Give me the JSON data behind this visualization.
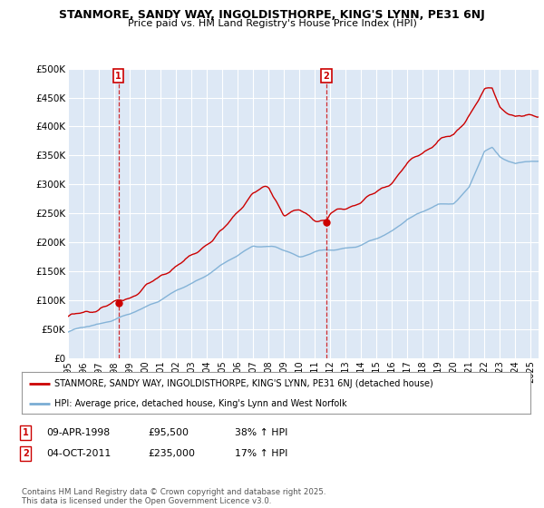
{
  "title": "STANMORE, SANDY WAY, INGOLDISTHORPE, KING'S LYNN, PE31 6NJ",
  "subtitle": "Price paid vs. HM Land Registry's House Price Index (HPI)",
  "background_color": "#ffffff",
  "plot_bg_color": "#dde8f5",
  "grid_color": "#ffffff",
  "y_min": 0,
  "y_max": 500000,
  "y_ticks": [
    0,
    50000,
    100000,
    150000,
    200000,
    250000,
    300000,
    350000,
    400000,
    450000,
    500000
  ],
  "y_tick_labels": [
    "£0",
    "£50K",
    "£100K",
    "£150K",
    "£200K",
    "£250K",
    "£300K",
    "£350K",
    "£400K",
    "£450K",
    "£500K"
  ],
  "sale1_date": 1998.27,
  "sale1_price": 95500,
  "sale2_date": 2011.75,
  "sale2_price": 235000,
  "legend_entries": [
    "STANMORE, SANDY WAY, INGOLDISTHORPE, KING'S LYNN, PE31 6NJ (detached house)",
    "HPI: Average price, detached house, King's Lynn and West Norfolk"
  ],
  "legend_colors": [
    "#cc0000",
    "#7aadd4"
  ],
  "footer": "Contains HM Land Registry data © Crown copyright and database right 2025.\nThis data is licensed under the Open Government Licence v3.0.",
  "hpi_line_color": "#7aadd4",
  "price_line_color": "#cc0000"
}
